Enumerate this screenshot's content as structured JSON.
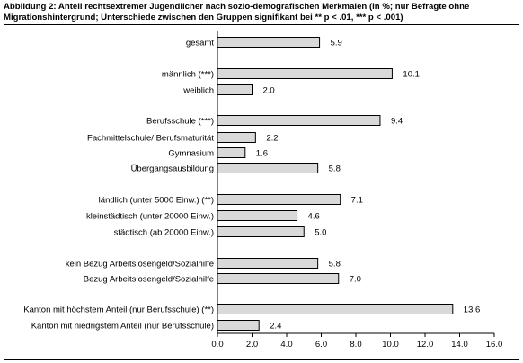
{
  "title": "Abbildung 2: Anteil rechtsextremer Jugendlicher nach sozio-demografischen Merkmalen (in %; nur Befragte ohne Migrationshintergrund; Unterschiede zwischen den Gruppen signifikant bei ** p < .01, *** p < .001)",
  "chart_data": {
    "type": "bar",
    "orientation": "horizontal",
    "categories": [
      "gesamt",
      "männlich (***)",
      "weiblich",
      "Berufsschule (***)",
      "Fachmittelschule/ Berufsmaturität",
      "Gymnasium",
      "Übergangsausbildung",
      "ländlich (unter 5000 Einw.) (**)",
      "kleinstädtisch (unter 20000 Einw.)",
      "städtisch (ab 20000 Einw.)",
      "kein Bezug Arbeitslosengeld/Sozialhilfe",
      "Bezug Arbeitslosengeld/Sozialhilfe",
      "Kanton mit höchstem Anteil (nur Berufsschule) (**)",
      "Kanton mit niedrigstem Anteil (nur Berufsschule)"
    ],
    "values": [
      5.9,
      10.1,
      2.0,
      9.4,
      2.2,
      1.6,
      5.8,
      7.1,
      4.6,
      5.0,
      5.8,
      7.0,
      13.6,
      2.4
    ],
    "value_labels": [
      "5.9",
      "10.1",
      "2.0",
      "9.4",
      "2.2",
      "1.6",
      "5.8",
      "7.1",
      "4.6",
      "5.0",
      "5.8",
      "7.0",
      "13.6",
      "2.4"
    ],
    "groups": [
      [
        0
      ],
      [
        1,
        2
      ],
      [
        3,
        4,
        5,
        6
      ],
      [
        7,
        8,
        9
      ],
      [
        10,
        11
      ],
      [
        12,
        13
      ]
    ],
    "xlim": [
      0,
      16
    ],
    "xticks": [
      "0.0",
      "2.0",
      "4.0",
      "6.0",
      "8.0",
      "10.0",
      "12.0",
      "14.0",
      "16.0"
    ],
    "grid": false,
    "legend": "none",
    "colors": {
      "bar_fill": "#d9d9d9",
      "bar_stroke": "#000000"
    }
  }
}
